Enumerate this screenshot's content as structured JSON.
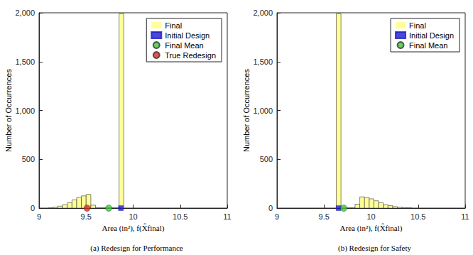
{
  "chart_data": [
    {
      "type": "histogram",
      "title": "(a) Redesign for Performance",
      "x_label": "Area (in²), f(X̂final)",
      "y_label": "Number of Occurrences",
      "xlim": [
        9,
        11
      ],
      "xticks": [
        9,
        9.5,
        10,
        10.5,
        11
      ],
      "ylim": [
        0,
        2000
      ],
      "yticks": [
        0,
        500,
        1000,
        1500,
        2000
      ],
      "legend": "upper right",
      "series": [
        {
          "name": "Final",
          "type": "histogram",
          "color": "#ffff99",
          "bins": [
            9.1,
            9.15,
            9.2,
            9.25,
            9.3,
            9.35,
            9.4,
            9.45,
            9.5,
            9.55,
            9.6,
            9.65,
            9.7,
            9.75,
            9.8,
            9.85,
            9.9
          ],
          "values": [
            5,
            10,
            20,
            35,
            55,
            85,
            110,
            125,
            140,
            30,
            0,
            0,
            0,
            0,
            0,
            1990
          ]
        },
        {
          "name": "Initial Design",
          "type": "scatter",
          "marker": "square",
          "color": "#1c1cc8",
          "x": [
            9.87
          ],
          "values": [
            0
          ]
        },
        {
          "name": "Final Mean",
          "type": "scatter",
          "marker": "circle",
          "color": "#3cc83c",
          "x": [
            9.74
          ],
          "values": [
            0
          ]
        },
        {
          "name": "True Redesign",
          "type": "scatter",
          "marker": "circle",
          "color": "#e0281e",
          "x": [
            9.51
          ],
          "values": [
            0
          ]
        }
      ]
    },
    {
      "type": "histogram",
      "title": "(b) Redesign for Safety",
      "x_label": "Area (in²), f(X̂final)",
      "y_label": "Number of Occurrences",
      "xlim": [
        9,
        11
      ],
      "xticks": [
        9,
        9.5,
        10,
        10.5,
        11
      ],
      "ylim": [
        0,
        2000
      ],
      "yticks": [
        0,
        500,
        1000,
        1500,
        2000
      ],
      "legend": "upper right",
      "series": [
        {
          "name": "Final",
          "type": "histogram",
          "color": "#ffff99",
          "bins": [
            9.63,
            9.68,
            9.73,
            9.78,
            9.83,
            9.88,
            9.93,
            9.98,
            10.03,
            10.08,
            10.13,
            10.18,
            10.23,
            10.28,
            10.33,
            10.38,
            10.43
          ],
          "values": [
            1990,
            0,
            0,
            0,
            40,
            115,
            110,
            95,
            75,
            55,
            35,
            25,
            15,
            10,
            5,
            3
          ]
        },
        {
          "name": "Initial Design",
          "type": "scatter",
          "marker": "square",
          "color": "#1c1cc8",
          "x": [
            9.655
          ],
          "values": [
            0
          ]
        },
        {
          "name": "Final Mean",
          "type": "scatter",
          "marker": "circle",
          "color": "#3cc83c",
          "x": [
            9.71
          ],
          "values": [
            0
          ]
        }
      ]
    }
  ]
}
